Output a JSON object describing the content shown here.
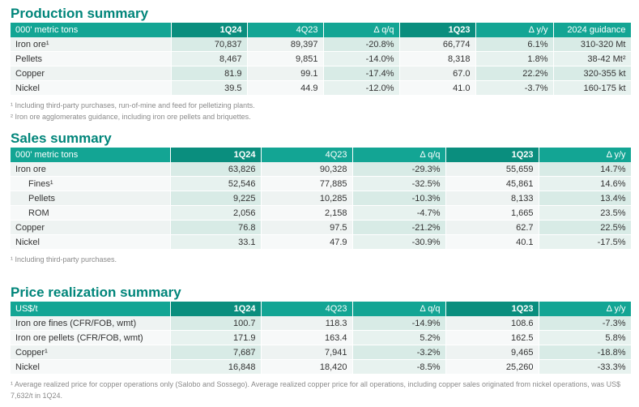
{
  "production": {
    "title": "Production summary",
    "header": [
      "000' metric tons",
      "1Q24",
      "4Q23",
      "Δ q/q",
      "1Q23",
      "Δ y/y",
      "2024 guidance"
    ],
    "rows": [
      [
        "Iron ore¹",
        "70,837",
        "89,397",
        "-20.8%",
        "66,774",
        "6.1%",
        "310-320 Mt"
      ],
      [
        "Pellets",
        "8,467",
        "9,851",
        "-14.0%",
        "8,318",
        "1.8%",
        "38-42 Mt²"
      ],
      [
        "Copper",
        "81.9",
        "99.1",
        "-17.4%",
        "67.0",
        "22.2%",
        "320-355 kt"
      ],
      [
        "Nickel",
        "39.5",
        "44.9",
        "-12.0%",
        "41.0",
        "-3.7%",
        "160-175 kt"
      ]
    ],
    "footnotes": [
      "¹ Including third-party purchases, run-of-mine and feed for pelletizing plants.",
      "² Iron ore agglomerates guidance, including iron ore pellets and briquettes."
    ]
  },
  "sales": {
    "title": "Sales summary",
    "header": [
      "000' metric tons",
      "1Q24",
      "4Q23",
      "Δ q/q",
      "1Q23",
      "Δ y/y"
    ],
    "rows": [
      [
        "Iron ore",
        "63,826",
        "90,328",
        "-29.3%",
        "55,659",
        "14.7%"
      ],
      [
        "Fines¹",
        "52,546",
        "77,885",
        "-32.5%",
        "45,861",
        "14.6%"
      ],
      [
        "Pellets",
        "9,225",
        "10,285",
        "-10.3%",
        "8,133",
        "13.4%"
      ],
      [
        "ROM",
        "2,056",
        "2,158",
        "-4.7%",
        "1,665",
        "23.5%"
      ],
      [
        "Copper",
        "76.8",
        "97.5",
        "-21.2%",
        "62.7",
        "22.5%"
      ],
      [
        "Nickel",
        "33.1",
        "47.9",
        "-30.9%",
        "40.1",
        "-17.5%"
      ]
    ],
    "footnotes": [
      "¹ Including third-party purchases."
    ]
  },
  "price": {
    "title": "Price realization summary",
    "header": [
      "US$/t",
      "1Q24",
      "4Q23",
      "Δ q/q",
      "1Q23",
      "Δ y/y"
    ],
    "rows": [
      [
        "Iron ore fines (CFR/FOB, wmt)",
        "100.7",
        "118.3",
        "-14.9%",
        "108.6",
        "-7.3%"
      ],
      [
        "Iron ore pellets (CFR/FOB, wmt)",
        "171.9",
        "163.4",
        "5.2%",
        "162.5",
        "5.8%"
      ],
      [
        "Copper¹",
        "7,687",
        "7,941",
        "-3.2%",
        "9,465",
        "-18.8%"
      ],
      [
        "Nickel",
        "16,848",
        "18,420",
        "-8.5%",
        "25,260",
        "-33.3%"
      ]
    ],
    "footnotes": [
      "¹ Average realized price for copper operations only (Salobo and Sossego). Average realized copper price for all operations, including copper sales originated from nickel operations, was US$ 7,632/t in 1Q24."
    ]
  }
}
